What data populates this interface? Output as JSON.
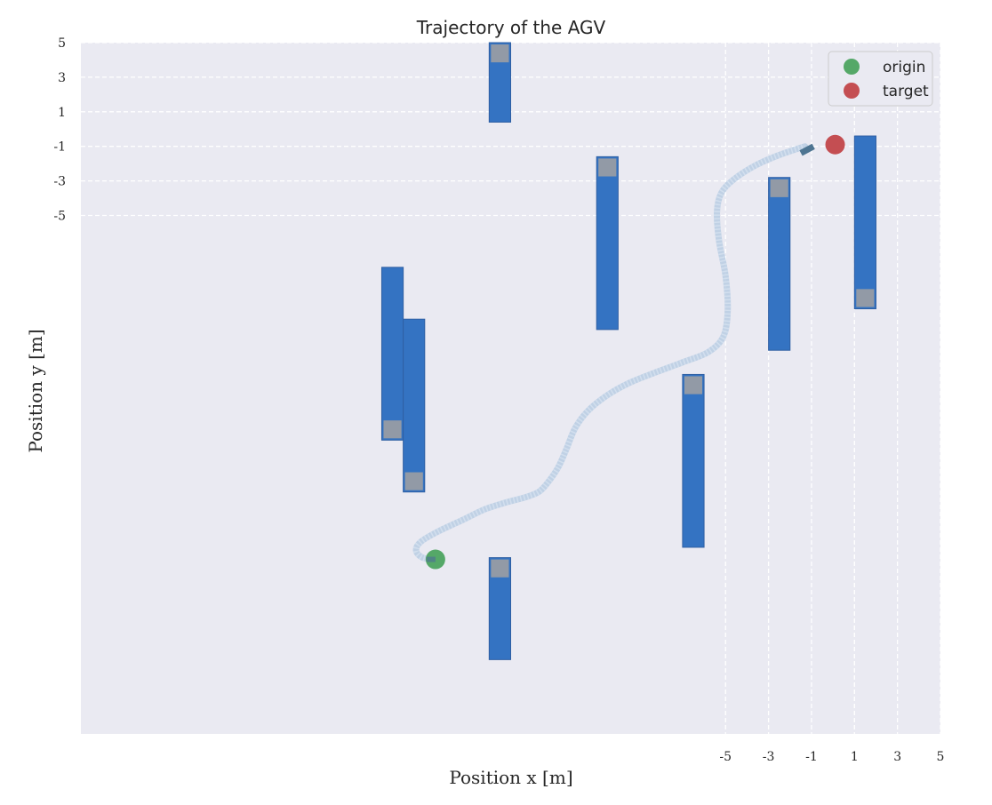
{
  "chart_data": {
    "type": "scatter",
    "title": "Trajectory of the AGV",
    "xlabel": "Position x [m]",
    "ylabel": "Position y [m]",
    "x_ticks": [
      "-5",
      "-3",
      "-1",
      "1",
      "3",
      "5"
    ],
    "y_ticks": [
      "5",
      "3",
      "1",
      "-1",
      "-3",
      "-5"
    ],
    "xlim": [
      -35,
      5
    ],
    "ylim": [
      -35,
      5
    ],
    "grid": true,
    "legend_position": "top-right",
    "background_color": "#eaeaf2",
    "colors": {
      "obstacle": "#3473c2",
      "obstacle_edge": "#2f5fa3",
      "sensor": "#929aa6",
      "trajectory": "#b9cce3",
      "origin": "#55a868",
      "target": "#c44e52",
      "agent": "#4e7592"
    },
    "legend": [
      {
        "label": "origin",
        "color": "#55a868"
      },
      {
        "label": "target",
        "color": "#c44e52"
      }
    ],
    "origin": {
      "x": -18.5,
      "y": -24.9
    },
    "target": {
      "x": 0.1,
      "y": -0.9
    },
    "agent": {
      "x": -1.2,
      "y": -1.2
    },
    "obstacles": [
      {
        "x": -20.5,
        "y_top": -8.0,
        "y_bottom": -18.0,
        "sensor": "bottom"
      },
      {
        "x": -19.5,
        "y_top": -11.0,
        "y_bottom": -21.0,
        "sensor": "bottom"
      },
      {
        "x": -15.5,
        "y_top": 5.0,
        "y_bottom": 0.4,
        "sensor": "top"
      },
      {
        "x": -15.5,
        "y_top": -24.8,
        "y_bottom": -30.7,
        "sensor": "top"
      },
      {
        "x": -10.5,
        "y_top": -1.6,
        "y_bottom": -11.6,
        "sensor": "top"
      },
      {
        "x": -6.5,
        "y_top": -14.2,
        "y_bottom": -24.2,
        "sensor": "top"
      },
      {
        "x": -2.5,
        "y_top": -2.8,
        "y_bottom": -12.8,
        "sensor": "top"
      },
      {
        "x": 1.5,
        "y_top": -0.4,
        "y_bottom": -10.4,
        "sensor": "bottom"
      }
    ],
    "trajectory": [
      {
        "x": -18.5,
        "y": -24.9
      },
      {
        "x": -19.1,
        "y": -24.8
      },
      {
        "x": -19.4,
        "y": -24.4
      },
      {
        "x": -19.2,
        "y": -23.9
      },
      {
        "x": -18.4,
        "y": -23.3
      },
      {
        "x": -17.2,
        "y": -22.6
      },
      {
        "x": -16.2,
        "y": -22.0
      },
      {
        "x": -15.2,
        "y": -21.6
      },
      {
        "x": -14.3,
        "y": -21.3
      },
      {
        "x": -13.7,
        "y": -21.0
      },
      {
        "x": -13.3,
        "y": -20.5
      },
      {
        "x": -12.8,
        "y": -19.6
      },
      {
        "x": -12.4,
        "y": -18.5
      },
      {
        "x": -12.0,
        "y": -17.3
      },
      {
        "x": -11.4,
        "y": -16.3
      },
      {
        "x": -10.5,
        "y": -15.4
      },
      {
        "x": -9.5,
        "y": -14.7
      },
      {
        "x": -8.3,
        "y": -14.1
      },
      {
        "x": -7.0,
        "y": -13.5
      },
      {
        "x": -5.8,
        "y": -12.9
      },
      {
        "x": -5.1,
        "y": -12.0
      },
      {
        "x": -4.9,
        "y": -10.5
      },
      {
        "x": -5.0,
        "y": -8.5
      },
      {
        "x": -5.3,
        "y": -6.5
      },
      {
        "x": -5.4,
        "y": -4.8
      },
      {
        "x": -5.2,
        "y": -3.7
      },
      {
        "x": -4.6,
        "y": -2.9
      },
      {
        "x": -3.6,
        "y": -2.1
      },
      {
        "x": -2.5,
        "y": -1.5
      },
      {
        "x": -1.3,
        "y": -1.0
      }
    ]
  }
}
